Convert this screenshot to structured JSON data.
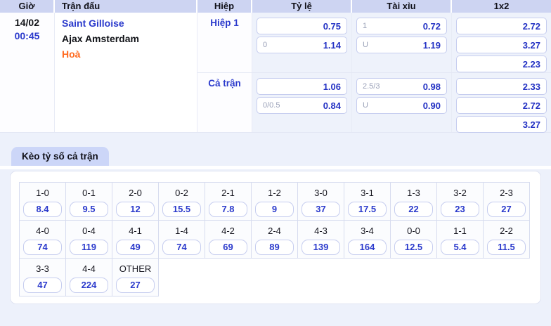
{
  "table": {
    "headers": [
      "Giờ",
      "Trận đấu",
      "Hiệp",
      "Tỷ lệ",
      "Tài xỉu",
      "1x2"
    ],
    "match": {
      "date": "14/02",
      "time": "00:45",
      "home": "Saint Gilloise",
      "away": "Ajax Amsterdam",
      "draw": "Hoà",
      "periods": [
        {
          "label": "Hiệp 1",
          "ty_le": [
            {
              "handicap": "",
              "odds": "0.75"
            },
            {
              "handicap": "0",
              "odds": "1.14"
            }
          ],
          "tai_xiu": [
            {
              "handicap": "1",
              "odds": "0.72"
            },
            {
              "handicap": "U",
              "odds": "1.19"
            }
          ],
          "one_x_two": [
            "2.72",
            "3.27",
            "2.23"
          ]
        },
        {
          "label": "Cả trận",
          "ty_le": [
            {
              "handicap": "",
              "odds": "1.06"
            },
            {
              "handicap": "0/0.5",
              "odds": "0.84"
            }
          ],
          "tai_xiu": [
            {
              "handicap": "2.5/3",
              "odds": "0.98"
            },
            {
              "handicap": "U",
              "odds": "0.90"
            }
          ],
          "one_x_two": [
            "2.33",
            "2.72",
            "3.27"
          ]
        }
      ]
    }
  },
  "score_section": {
    "tab_label": "Kèo tỷ số cả trận",
    "rows": [
      [
        {
          "score": "1-0",
          "odds": "8.4"
        },
        {
          "score": "0-1",
          "odds": "9.5"
        },
        {
          "score": "2-0",
          "odds": "12"
        },
        {
          "score": "0-2",
          "odds": "15.5"
        },
        {
          "score": "2-1",
          "odds": "7.8"
        },
        {
          "score": "1-2",
          "odds": "9"
        },
        {
          "score": "3-0",
          "odds": "37"
        },
        {
          "score": "3-1",
          "odds": "17.5"
        },
        {
          "score": "1-3",
          "odds": "22"
        },
        {
          "score": "3-2",
          "odds": "23"
        },
        {
          "score": "2-3",
          "odds": "27"
        }
      ],
      [
        {
          "score": "4-0",
          "odds": "74"
        },
        {
          "score": "0-4",
          "odds": "119"
        },
        {
          "score": "4-1",
          "odds": "49"
        },
        {
          "score": "1-4",
          "odds": "74"
        },
        {
          "score": "4-2",
          "odds": "69"
        },
        {
          "score": "2-4",
          "odds": "89"
        },
        {
          "score": "4-3",
          "odds": "139"
        },
        {
          "score": "3-4",
          "odds": "164"
        },
        {
          "score": "0-0",
          "odds": "12.5"
        },
        {
          "score": "1-1",
          "odds": "5.4"
        },
        {
          "score": "2-2",
          "odds": "11.5"
        }
      ],
      [
        {
          "score": "3-3",
          "odds": "47"
        },
        {
          "score": "4-4",
          "odds": "224"
        },
        {
          "score": "OTHER",
          "odds": "27"
        }
      ]
    ]
  },
  "colors": {
    "accent_blue": "#2b3acc",
    "odds_value_blue": "#2432c4",
    "draw_orange": "#ff6a1f",
    "header_bg": "#cdd4f2",
    "tab_bg": "#ccd6f8",
    "page_bg": "#edf1fb"
  }
}
